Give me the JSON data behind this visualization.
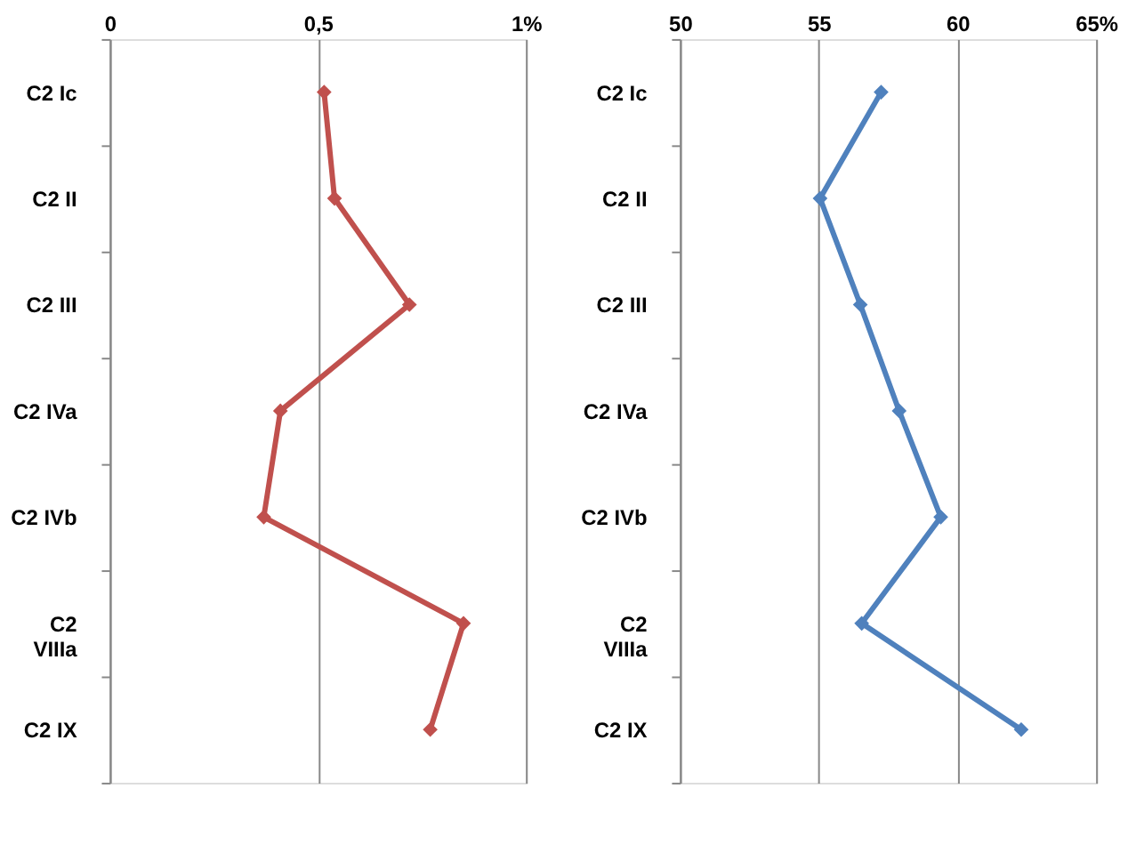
{
  "chart_data": [
    {
      "type": "line",
      "orientation": "horizontal",
      "categories": [
        "C2 Ic",
        "C2 II",
        "C2 III",
        "C2 IVa",
        "C2 IVb",
        "C2 VIIIa",
        "C2 IX"
      ],
      "series": [
        {
          "color": "#c0504d",
          "values": [
            0.515,
            0.54,
            0.72,
            0.41,
            0.37,
            0.85,
            0.77
          ]
        }
      ],
      "xlim": [
        0,
        1
      ],
      "xticks": [
        0,
        {
          "value": 0.5,
          "label": "0,5"
        },
        {
          "value": 1,
          "label": "1%"
        }
      ],
      "grid": "x",
      "marker": "diamond",
      "line_style": "solid"
    },
    {
      "type": "line",
      "orientation": "horizontal",
      "categories": [
        "C2 Ic",
        "C2 II",
        "C2 III",
        "C2 IVa",
        "C2 IVb",
        "C2 VIIIa",
        "C2 IX"
      ],
      "series": [
        {
          "color": "#4f81bd",
          "values": [
            57.25,
            55.05,
            56.5,
            57.9,
            59.4,
            56.55,
            62.3
          ]
        }
      ],
      "xlim": [
        50,
        65
      ],
      "xticks": [
        50,
        55,
        60,
        {
          "value": 65,
          "label": "65%"
        }
      ],
      "grid": "x",
      "marker": "diamond",
      "line_style": "solid"
    }
  ]
}
